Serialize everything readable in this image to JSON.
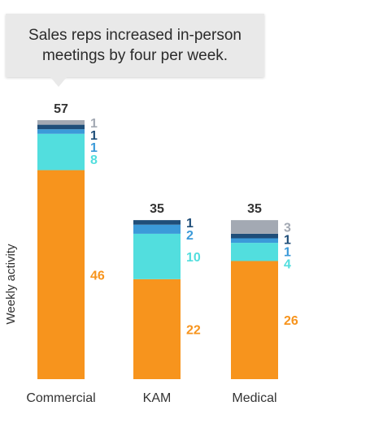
{
  "callout": {
    "text": "Sales reps increased in-person meetings by four per week."
  },
  "chart_data": {
    "type": "bar",
    "stacked": true,
    "ylabel": "Weekly activity",
    "xlabel": "",
    "title": "",
    "ylim": [
      0,
      57
    ],
    "categories": [
      "Commercial",
      "KAM",
      "Medical"
    ],
    "totals": [
      57,
      35,
      35
    ],
    "series": [
      {
        "color": "#f7941d",
        "values": [
          46,
          22,
          26
        ]
      },
      {
        "color": "#52dede",
        "values": [
          8,
          10,
          4
        ]
      },
      {
        "color": "#3b9ad9",
        "values": [
          1,
          2,
          1
        ]
      },
      {
        "color": "#1f4e79",
        "values": [
          1,
          1,
          1
        ]
      },
      {
        "color": "#a3a9b3",
        "values": [
          1,
          0,
          3
        ]
      }
    ],
    "label_colors": [
      "#f7941d",
      "#52dede",
      "#3b9ad9",
      "#1f4e79",
      "#a3a9b3"
    ],
    "grid": false,
    "legend": "none"
  }
}
